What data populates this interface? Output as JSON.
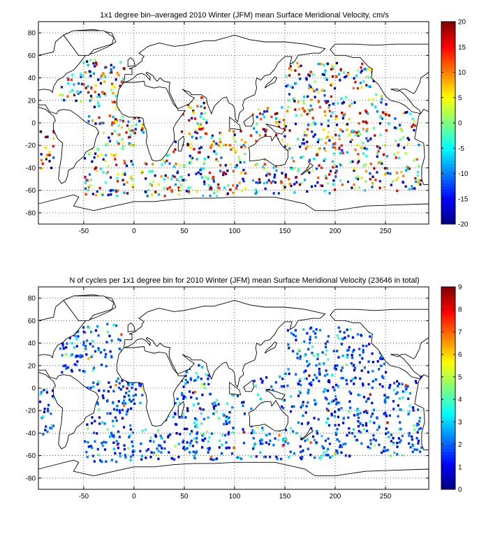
{
  "chart_data": [
    {
      "type": "heatmap",
      "title": "1x1 degree bin–averaged 2010 Winter (JFM) mean Surface Meridional Velocity, cm/s",
      "xlim": [
        -95,
        293
      ],
      "ylim": [
        -90,
        90
      ],
      "x_ticks": [
        -50,
        0,
        50,
        100,
        150,
        200,
        250
      ],
      "y_ticks": [
        80,
        60,
        40,
        20,
        0,
        -20,
        -40,
        -60,
        -80
      ],
      "grid": true,
      "colorbar": {
        "min": -20,
        "max": 20,
        "ticks": [
          20,
          15,
          10,
          5,
          0,
          -5,
          -10,
          -15,
          -20
        ],
        "colormap": "jet"
      }
    },
    {
      "type": "heatmap",
      "title": "N of cycles per 1x1 degree bin for 2010 Winter (JFM) mean Surface Meridional Velocity (23646 in total)",
      "xlim": [
        -95,
        293
      ],
      "ylim": [
        -90,
        90
      ],
      "x_ticks": [
        -50,
        0,
        50,
        100,
        150,
        200,
        250
      ],
      "y_ticks": [
        80,
        60,
        40,
        20,
        0,
        -20,
        -40,
        -60,
        -80
      ],
      "grid": true,
      "colorbar": {
        "min": 0,
        "max": 9,
        "ticks": [
          9,
          8,
          7,
          6,
          5,
          4,
          3,
          2,
          1,
          0
        ],
        "colormap": "jet"
      }
    }
  ]
}
